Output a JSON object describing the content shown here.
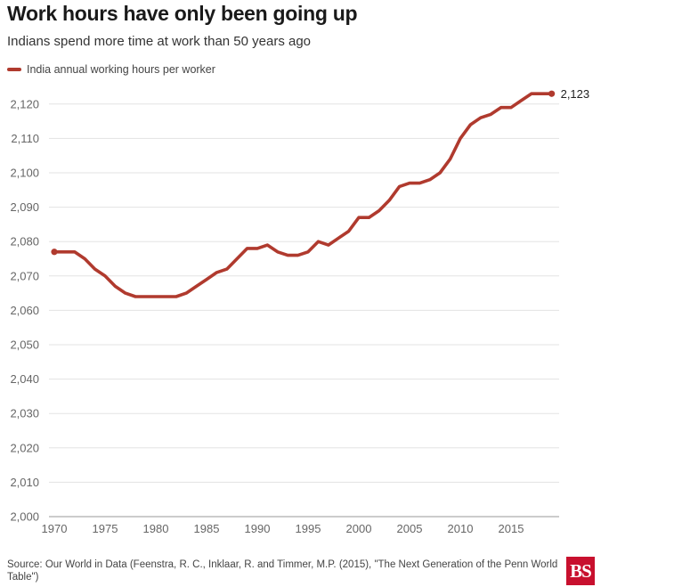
{
  "header": {
    "title": "Work hours have only been going up",
    "subtitle": "Indians spend more time at work than 50 years ago"
  },
  "legend": {
    "label": "India annual working hours per worker",
    "color": "#b03a2e"
  },
  "end_label": "2,123",
  "footer": {
    "source": "Source: Our World in Data (Feenstra, R. C., Inklaar, R. and Timmer, M.P. (2015), \"The Next Generation of the Penn World Table\")",
    "logo_text": "BS",
    "logo_color": "#c8102e"
  },
  "chart_data": {
    "type": "line",
    "title": "Work hours have only been going up",
    "subtitle": "Indians spend more time at work than 50 years ago",
    "xlabel": "",
    "ylabel": "",
    "xlim": [
      1970,
      2019
    ],
    "ylim": [
      2000,
      2125
    ],
    "grid": true,
    "legend_position": "top-left",
    "x_ticks": [
      1970,
      1975,
      1980,
      1985,
      1990,
      1995,
      2000,
      2005,
      2010,
      2015
    ],
    "x_tick_labels": [
      "1970",
      "1975",
      "1980",
      "1985",
      "1990",
      "1995",
      "2000",
      "2005",
      "2010",
      "2015"
    ],
    "y_ticks": [
      2000,
      2010,
      2020,
      2030,
      2040,
      2050,
      2060,
      2070,
      2080,
      2090,
      2100,
      2110,
      2120
    ],
    "y_tick_labels": [
      "2,000",
      "2,010",
      "2,020",
      "2,030",
      "2,040",
      "2,050",
      "2,060",
      "2,070",
      "2,080",
      "2,090",
      "2,100",
      "2,110",
      "2,120"
    ],
    "x": [
      1970,
      1971,
      1972,
      1973,
      1974,
      1975,
      1976,
      1977,
      1978,
      1979,
      1980,
      1981,
      1982,
      1983,
      1984,
      1985,
      1986,
      1987,
      1988,
      1989,
      1990,
      1991,
      1992,
      1993,
      1994,
      1995,
      1996,
      1997,
      1998,
      1999,
      2000,
      2001,
      2002,
      2003,
      2004,
      2005,
      2006,
      2007,
      2008,
      2009,
      2010,
      2011,
      2012,
      2013,
      2014,
      2015,
      2016,
      2017,
      2018,
      2019
    ],
    "series": [
      {
        "name": "India annual working hours per worker",
        "color": "#b03a2e",
        "values": [
          2077,
          2077,
          2077,
          2075,
          2072,
          2070,
          2067,
          2065,
          2064,
          2064,
          2064,
          2064,
          2064,
          2065,
          2067,
          2069,
          2071,
          2072,
          2075,
          2078,
          2078,
          2079,
          2077,
          2076,
          2076,
          2077,
          2080,
          2079,
          2081,
          2083,
          2087,
          2087,
          2089,
          2092,
          2096,
          2097,
          2097,
          2098,
          2100,
          2104,
          2110,
          2114,
          2116,
          2117,
          2119,
          2119,
          2121,
          2123,
          2123,
          2123
        ]
      }
    ]
  }
}
